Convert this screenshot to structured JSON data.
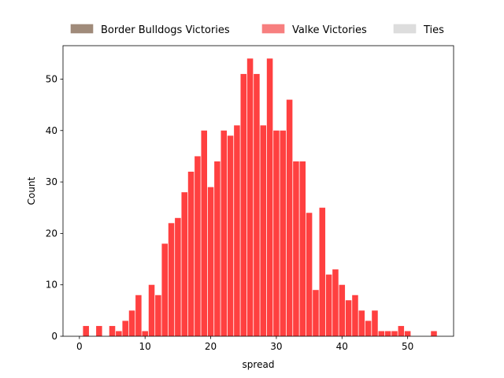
{
  "chart_data": {
    "type": "bar",
    "xlabel": "spread",
    "ylabel": "Count",
    "xlim": [
      -2.5,
      57
    ],
    "ylim": [
      0,
      56.5
    ],
    "xticks": [
      0,
      10,
      20,
      30,
      40,
      50
    ],
    "yticks": [
      0,
      10,
      20,
      30,
      40,
      50
    ],
    "bin_width": 1,
    "legend": {
      "placement": "top",
      "entries": [
        {
          "name": "Border Bulldogs Victories",
          "color": "#a08b7a"
        },
        {
          "name": "Valke Victories",
          "color": "#f77f7f"
        },
        {
          "name": "Ties",
          "color": "#dddddd"
        }
      ]
    },
    "series": [
      {
        "name": "Valke Victories",
        "color": "#ff4040",
        "x": [
          1,
          3,
          5,
          6,
          7,
          8,
          9,
          10,
          11,
          12,
          13,
          14,
          15,
          16,
          17,
          18,
          19,
          20,
          21,
          22,
          23,
          24,
          25,
          26,
          27,
          28,
          29,
          30,
          31,
          32,
          33,
          34,
          35,
          36,
          37,
          38,
          39,
          40,
          41,
          42,
          43,
          44,
          45,
          46,
          47,
          48,
          49,
          50,
          54
        ],
        "values": [
          2,
          2,
          2,
          1,
          3,
          5,
          8,
          1,
          10,
          8,
          18,
          22,
          23,
          28,
          32,
          35,
          40,
          29,
          34,
          40,
          39,
          41,
          51,
          54,
          51,
          41,
          54,
          40,
          40,
          46,
          34,
          34,
          24,
          9,
          25,
          12,
          13,
          10,
          7,
          8,
          5,
          3,
          5,
          1,
          1,
          1,
          2,
          1,
          1
        ]
      }
    ]
  }
}
